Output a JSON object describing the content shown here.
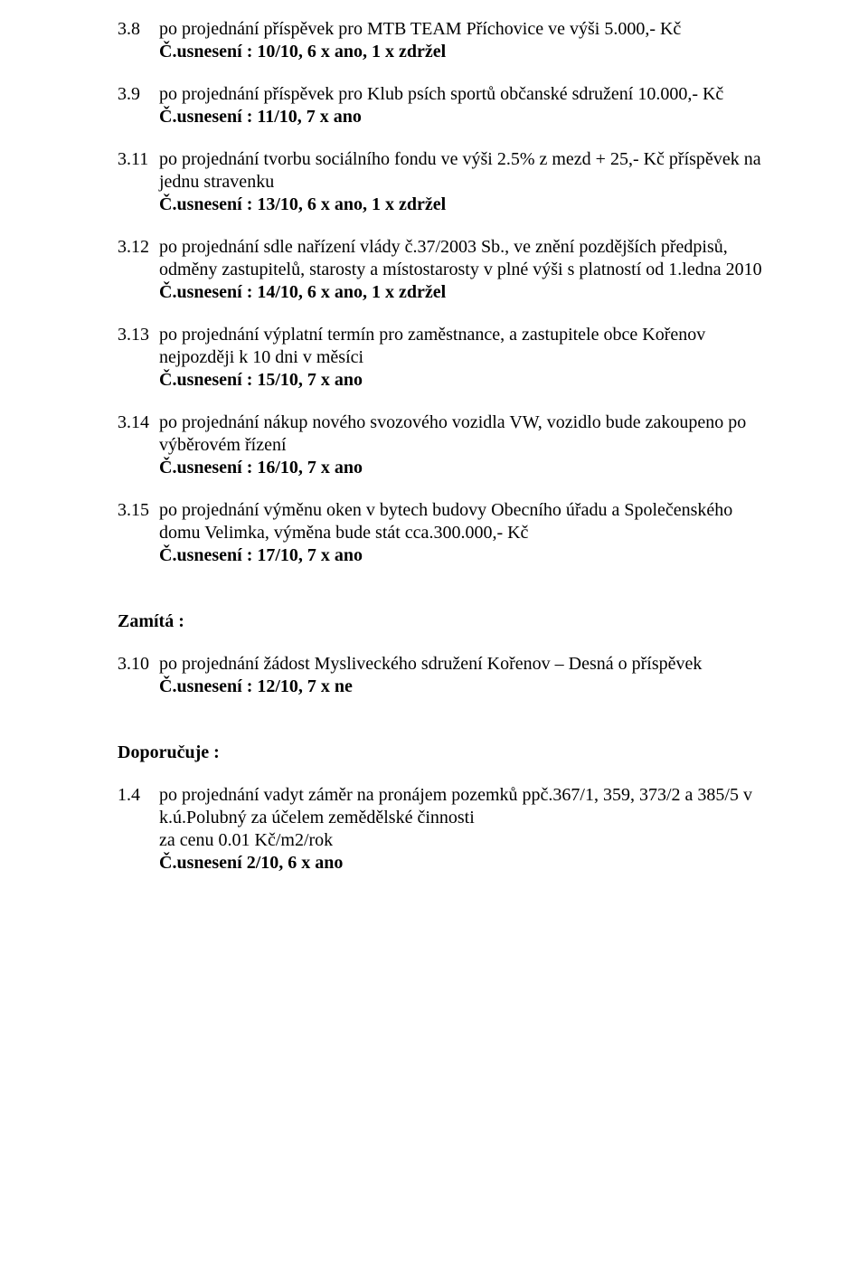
{
  "items_top": [
    {
      "num": "3.8",
      "text": "po projednání příspěvek pro MTB TEAM Příchovice ve výši 5.000,- Kč",
      "resolution": "Č.usnesení : 10/10, 6 x ano, 1 x zdržel"
    },
    {
      "num": "3.9",
      "text": "po projednání příspěvek pro Klub psích sportů občanské sdružení 10.000,- Kč",
      "resolution": "Č.usnesení : 11/10, 7 x ano"
    },
    {
      "num": "3.11",
      "text": "po projednání tvorbu sociálního fondu ve výši 2.5% z mezd + 25,- Kč příspěvek na jednu stravenku",
      "resolution": "Č.usnesení : 13/10, 6 x ano, 1 x zdržel"
    },
    {
      "num": "3.12",
      "text": "po projednání sdle nařízení vlády č.37/2003 Sb., ve znění pozdějších předpisů, odměny zastupitelů, starosty a místostarosty v plné výši s platností od 1.ledna 2010",
      "resolution": "Č.usnesení : 14/10, 6 x ano, 1 x zdržel"
    },
    {
      "num": "3.13",
      "text": "po projednání výplatní termín pro zaměstnance, a zastupitele obce Kořenov nejpozději k 10 dni v měsíci",
      "resolution": "Č.usnesení : 15/10, 7 x ano"
    },
    {
      "num": "3.14",
      "text": "po projednání nákup nového svozového vozidla VW, vozidlo bude zakoupeno po výběrovém řízení",
      "resolution": "Č.usnesení : 16/10, 7 x ano"
    },
    {
      "num": "3.15",
      "text": "po projednání výměnu oken v bytech budovy Obecního úřadu a Společenského domu Velimka, výměna bude stát cca.300.000,- Kč",
      "resolution": "Č.usnesení : 17/10, 7 x ano"
    }
  ],
  "zamita": {
    "header": "Zamítá :",
    "item": {
      "num": "3.10",
      "text": "po projednání žádost Mysliveckého sdružení Kořenov – Desná o příspěvek",
      "resolution": "Č.usnesení : 12/10, 7 x ne"
    }
  },
  "doporucuje": {
    "header": "Doporučuje :",
    "item": {
      "num": "1.4",
      "text": "po projednání vadyt záměr na pronájem pozemků ppč.367/1, 359, 373/2 a 385/5 v k.ú.Polubný za účelem zemědělské činnosti",
      "price": "za cenu 0.01 Kč/m2/rok",
      "resolution": "Č.usnesení 2/10, 6 x ano"
    }
  }
}
